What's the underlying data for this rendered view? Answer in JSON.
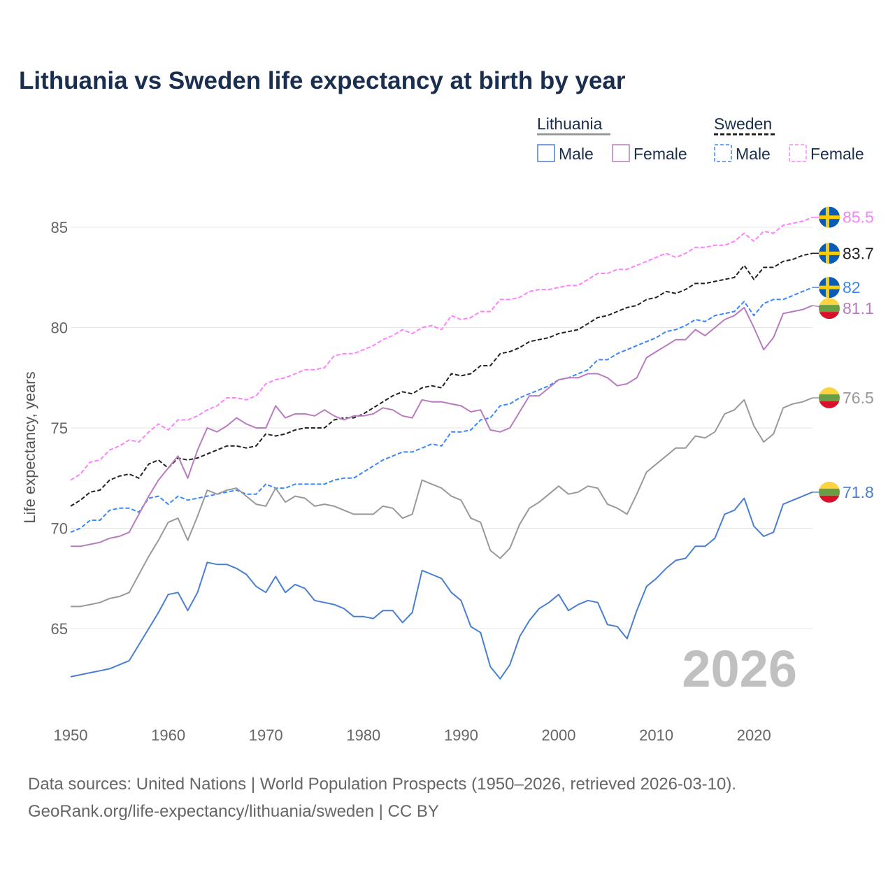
{
  "chart_data": {
    "type": "line",
    "title": "Lithuania vs Sweden life expectancy at birth by year",
    "xlabel": "",
    "ylabel": "Life expectancy, years",
    "xlim": [
      1950,
      2026
    ],
    "ylim": [
      61.5,
      87.5
    ],
    "xticks": [
      "1950",
      "1960",
      "1970",
      "1980",
      "1990",
      "2000",
      "2010",
      "2020"
    ],
    "yticks": [
      "65",
      "70",
      "75",
      "80",
      "85"
    ],
    "grid": true,
    "legend_placement": "top-right",
    "year_watermark": "2026",
    "legend": {
      "groups": [
        {
          "label": "Lithuania",
          "color": "#999999",
          "dashed": false
        },
        {
          "label": "Sweden",
          "color": "#222222",
          "dashed": true
        }
      ],
      "items": [
        {
          "label": "Male",
          "color": "#4a7fd0",
          "dashed": false
        },
        {
          "label": "Female",
          "color": "#b87bbf",
          "dashed": false
        },
        {
          "label": "Male",
          "color": "#3a86ff",
          "dashed": true
        },
        {
          "label": "Female",
          "color": "#ff80ff",
          "dashed": true
        }
      ]
    },
    "x_start": 1950,
    "series": [
      {
        "name": "Sweden Female",
        "country": "sweden",
        "color": "#ff80ff",
        "dashed": true,
        "end_label": "85.5",
        "values": [
          72.4,
          72.7,
          73.3,
          73.4,
          73.9,
          74.1,
          74.4,
          74.3,
          74.8,
          75.2,
          74.9,
          75.4,
          75.4,
          75.6,
          75.9,
          76.1,
          76.5,
          76.5,
          76.4,
          76.6,
          77.2,
          77.4,
          77.5,
          77.7,
          77.9,
          77.9,
          78.0,
          78.6,
          78.7,
          78.7,
          78.9,
          79.1,
          79.4,
          79.6,
          79.9,
          79.7,
          80.0,
          80.1,
          79.9,
          80.6,
          80.4,
          80.5,
          80.8,
          80.8,
          81.4,
          81.4,
          81.5,
          81.8,
          81.9,
          81.9,
          82.0,
          82.1,
          82.1,
          82.4,
          82.7,
          82.7,
          82.9,
          82.9,
          83.1,
          83.3,
          83.5,
          83.7,
          83.5,
          83.7,
          84.0,
          84.0,
          84.1,
          84.1,
          84.3,
          84.7,
          84.3,
          84.8,
          84.7,
          85.1,
          85.2,
          85.3,
          85.5
        ]
      },
      {
        "name": "Sweden Total",
        "country": "sweden",
        "color": "#222222",
        "dashed": true,
        "end_label": "83.7",
        "values": [
          71.1,
          71.4,
          71.8,
          71.9,
          72.4,
          72.6,
          72.7,
          72.5,
          73.2,
          73.4,
          73.0,
          73.5,
          73.4,
          73.5,
          73.7,
          73.9,
          74.1,
          74.1,
          74.0,
          74.1,
          74.7,
          74.6,
          74.7,
          74.9,
          75.0,
          75.0,
          75.0,
          75.4,
          75.5,
          75.5,
          75.7,
          76.0,
          76.3,
          76.6,
          76.8,
          76.7,
          77.0,
          77.1,
          77.0,
          77.7,
          77.6,
          77.7,
          78.1,
          78.1,
          78.7,
          78.8,
          79.0,
          79.3,
          79.4,
          79.5,
          79.7,
          79.8,
          79.9,
          80.2,
          80.5,
          80.6,
          80.8,
          81.0,
          81.1,
          81.4,
          81.5,
          81.8,
          81.7,
          81.9,
          82.2,
          82.2,
          82.3,
          82.4,
          82.5,
          83.1,
          82.4,
          83.0,
          83.0,
          83.3,
          83.4,
          83.6,
          83.7
        ]
      },
      {
        "name": "Sweden Male",
        "country": "sweden",
        "color": "#3a86ff",
        "dashed": true,
        "end_label": "82",
        "values": [
          69.8,
          70.0,
          70.4,
          70.4,
          70.9,
          71.0,
          71.0,
          70.8,
          71.5,
          71.6,
          71.2,
          71.6,
          71.4,
          71.5,
          71.6,
          71.7,
          71.8,
          71.9,
          71.7,
          71.7,
          72.2,
          72.0,
          72.0,
          72.2,
          72.2,
          72.2,
          72.2,
          72.4,
          72.5,
          72.5,
          72.8,
          73.1,
          73.4,
          73.6,
          73.8,
          73.8,
          74.0,
          74.2,
          74.1,
          74.8,
          74.8,
          74.9,
          75.4,
          75.5,
          76.1,
          76.2,
          76.5,
          76.7,
          76.9,
          77.1,
          77.4,
          77.5,
          77.7,
          77.9,
          78.4,
          78.4,
          78.7,
          78.9,
          79.1,
          79.3,
          79.5,
          79.8,
          79.9,
          80.1,
          80.4,
          80.3,
          80.6,
          80.7,
          80.8,
          81.3,
          80.6,
          81.2,
          81.4,
          81.4,
          81.6,
          81.8,
          82.0
        ]
      },
      {
        "name": "Lithuania Female",
        "country": "lithuania",
        "color": "#b87bbf",
        "dashed": false,
        "end_label": "81.1",
        "values": [
          69.1,
          69.1,
          69.2,
          69.3,
          69.5,
          69.6,
          69.8,
          70.7,
          71.6,
          72.4,
          73.0,
          73.6,
          72.5,
          73.9,
          75.0,
          74.8,
          75.1,
          75.5,
          75.2,
          75.0,
          75.0,
          76.1,
          75.5,
          75.7,
          75.7,
          75.6,
          75.9,
          75.6,
          75.4,
          75.6,
          75.6,
          75.7,
          76.0,
          75.9,
          75.6,
          75.5,
          76.4,
          76.3,
          76.3,
          76.2,
          76.1,
          75.8,
          75.9,
          74.9,
          74.8,
          75.0,
          75.8,
          76.6,
          76.6,
          77.0,
          77.4,
          77.5,
          77.5,
          77.7,
          77.7,
          77.5,
          77.1,
          77.2,
          77.5,
          78.5,
          78.8,
          79.1,
          79.4,
          79.4,
          79.9,
          79.6,
          80.0,
          80.4,
          80.6,
          81.0,
          80.0,
          78.9,
          79.5,
          80.7,
          80.8,
          80.9,
          81.1
        ]
      },
      {
        "name": "Lithuania Total",
        "country": "lithuania",
        "color": "#999999",
        "dashed": false,
        "end_label": "76.5",
        "values": [
          66.1,
          66.1,
          66.2,
          66.3,
          66.5,
          66.6,
          66.8,
          67.7,
          68.6,
          69.4,
          70.3,
          70.5,
          69.4,
          70.6,
          71.9,
          71.7,
          71.9,
          72.0,
          71.6,
          71.2,
          71.1,
          72.0,
          71.3,
          71.6,
          71.5,
          71.1,
          71.2,
          71.1,
          70.9,
          70.7,
          70.7,
          70.7,
          71.1,
          71.0,
          70.5,
          70.7,
          72.4,
          72.2,
          72.0,
          71.6,
          71.4,
          70.5,
          70.3,
          68.9,
          68.5,
          69.0,
          70.2,
          71.0,
          71.3,
          71.7,
          72.1,
          71.7,
          71.8,
          72.1,
          72.0,
          71.2,
          71.0,
          70.7,
          71.7,
          72.8,
          73.2,
          73.6,
          74.0,
          74.0,
          74.6,
          74.5,
          74.8,
          75.7,
          75.9,
          76.4,
          75.1,
          74.3,
          74.7,
          76.0,
          76.2,
          76.3,
          76.5
        ]
      },
      {
        "name": "Lithuania Male",
        "country": "lithuania",
        "color": "#4a7fd0",
        "dashed": false,
        "end_label": "71.8",
        "values": [
          62.6,
          62.7,
          62.8,
          62.9,
          63.0,
          63.2,
          63.4,
          64.2,
          65.0,
          65.8,
          66.7,
          66.8,
          65.9,
          66.8,
          68.3,
          68.2,
          68.2,
          68.0,
          67.7,
          67.1,
          66.8,
          67.6,
          66.8,
          67.2,
          67.0,
          66.4,
          66.3,
          66.2,
          66.0,
          65.6,
          65.6,
          65.5,
          65.9,
          65.9,
          65.3,
          65.8,
          67.9,
          67.7,
          67.5,
          66.8,
          66.4,
          65.1,
          64.8,
          63.1,
          62.5,
          63.2,
          64.6,
          65.4,
          66.0,
          66.3,
          66.7,
          65.9,
          66.2,
          66.4,
          66.3,
          65.2,
          65.1,
          64.5,
          65.9,
          67.1,
          67.5,
          68.0,
          68.4,
          68.5,
          69.1,
          69.1,
          69.5,
          70.7,
          70.9,
          71.5,
          70.1,
          69.6,
          69.8,
          71.2,
          71.4,
          71.6,
          71.8
        ]
      }
    ]
  },
  "footer": {
    "line1": "Data sources: United Nations | World Population Prospects (1950–2026, retrieved 2026-03-10).",
    "line2": "GeoRank.org/life-expectancy/lithuania/sweden | CC BY"
  }
}
